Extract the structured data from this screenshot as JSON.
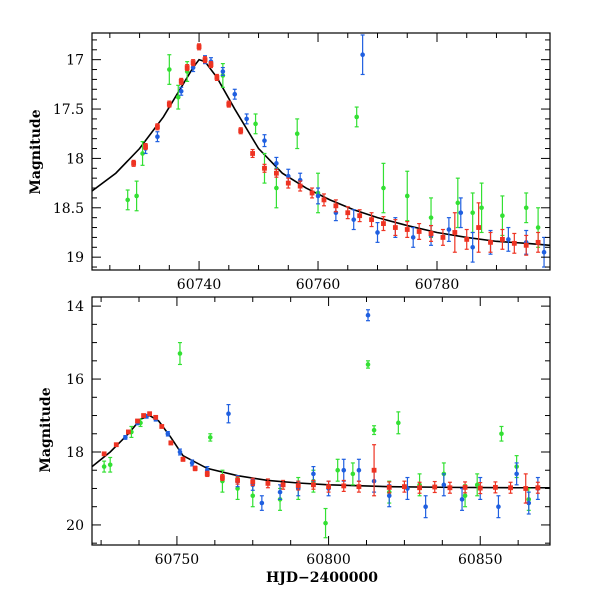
{
  "chart_data": [
    {
      "type": "scatter",
      "xlabel": "",
      "ylabel": "Magnitude",
      "xlim": [
        60722,
        60799
      ],
      "ylim": [
        19.13,
        16.73
      ],
      "y_inverted": true,
      "x_ticks": [
        60740,
        60760,
        60780
      ],
      "y_ticks": [
        17,
        17.5,
        18,
        18.5,
        19
      ],
      "y_tick_labels": [
        "17",
        "17.5",
        "18",
        "18.5",
        "19"
      ],
      "series_colors": {
        "green": "#33e033",
        "blue": "#1f5fe0",
        "red": "#ee3322",
        "model": "#000000"
      },
      "model_curve": {
        "x": [
          60722,
          60726,
          60730,
          60734,
          60737,
          60739,
          60740,
          60741,
          60743,
          60746,
          60750,
          60754,
          60758,
          60762,
          60766,
          60770,
          60775,
          60780,
          60785,
          60790,
          60795,
          60799
        ],
        "y": [
          18.33,
          18.15,
          17.9,
          17.58,
          17.28,
          17.08,
          17.0,
          17.02,
          17.18,
          17.5,
          17.9,
          18.15,
          18.3,
          18.42,
          18.52,
          18.6,
          18.68,
          18.75,
          18.8,
          18.84,
          18.86,
          18.88
        ]
      },
      "series": [
        {
          "color": "green",
          "x": [
            60728,
            60729.5,
            60730.5,
            60735,
            60736.5,
            60738,
            60744,
            60749.5,
            60751,
            60753,
            60756.5,
            60760,
            60766.5,
            60771,
            60775,
            60779,
            60783.5,
            60786,
            60787.5,
            60791,
            60795,
            60797
          ],
          "y": [
            18.42,
            18.38,
            17.95,
            17.1,
            17.38,
            17.12,
            17.16,
            17.65,
            18.1,
            18.3,
            17.75,
            18.35,
            17.58,
            18.3,
            18.38,
            18.6,
            18.45,
            18.55,
            18.5,
            18.58,
            18.5,
            18.7
          ],
          "err": [
            0.1,
            0.15,
            0.12,
            0.15,
            0.12,
            0.1,
            0.12,
            0.1,
            0.15,
            0.2,
            0.15,
            0.2,
            0.1,
            0.25,
            0.25,
            0.2,
            0.25,
            0.2,
            0.25,
            0.2,
            0.15,
            0.2
          ]
        },
        {
          "color": "blue",
          "x": [
            60731,
            60733,
            60737,
            60739,
            60741,
            60742,
            60744,
            60746,
            60748,
            60751,
            60753,
            60755,
            60757,
            60760,
            60763,
            60766,
            60767.5,
            60770,
            60773,
            60776,
            60779,
            60782,
            60784,
            60786,
            60789,
            60792,
            60795,
            60798
          ],
          "y": [
            17.9,
            17.78,
            17.32,
            17.08,
            17.0,
            17.02,
            17.12,
            17.35,
            17.6,
            17.82,
            18.05,
            18.18,
            18.22,
            18.38,
            18.55,
            18.62,
            16.95,
            18.75,
            18.7,
            18.8,
            18.78,
            18.72,
            18.55,
            18.9,
            18.85,
            18.82,
            18.85,
            18.95
          ],
          "err": [
            0.05,
            0.05,
            0.04,
            0.04,
            0.04,
            0.04,
            0.04,
            0.05,
            0.05,
            0.06,
            0.06,
            0.07,
            0.07,
            0.08,
            0.08,
            0.1,
            0.2,
            0.1,
            0.1,
            0.1,
            0.1,
            0.12,
            0.15,
            0.15,
            0.12,
            0.12,
            0.12,
            0.15
          ]
        },
        {
          "color": "red",
          "x": [
            60729,
            60731,
            60733,
            60735,
            60737,
            60738,
            60739,
            60740,
            60741,
            60742,
            60743,
            60745,
            60747,
            60749,
            60751,
            60753,
            60755,
            60757,
            60759,
            60761,
            60763,
            60765,
            60767,
            60769,
            60771,
            60773,
            60775,
            60777,
            60779,
            60781,
            60783,
            60785,
            60787,
            60789,
            60791,
            60793,
            60795,
            60797
          ],
          "y": [
            18.05,
            17.88,
            17.68,
            17.45,
            17.22,
            17.08,
            17.03,
            16.87,
            17.0,
            17.05,
            17.18,
            17.45,
            17.72,
            17.95,
            18.1,
            18.15,
            18.25,
            18.28,
            18.35,
            18.42,
            18.48,
            18.55,
            18.58,
            18.62,
            18.66,
            18.7,
            18.72,
            18.74,
            18.76,
            18.8,
            18.75,
            18.82,
            18.7,
            18.85,
            18.82,
            18.86,
            18.88,
            18.85
          ],
          "err": [
            0.03,
            0.03,
            0.03,
            0.03,
            0.03,
            0.03,
            0.03,
            0.03,
            0.03,
            0.03,
            0.03,
            0.03,
            0.03,
            0.04,
            0.04,
            0.04,
            0.05,
            0.05,
            0.05,
            0.06,
            0.06,
            0.06,
            0.06,
            0.07,
            0.07,
            0.08,
            0.08,
            0.08,
            0.08,
            0.08,
            0.2,
            0.1,
            0.25,
            0.1,
            0.1,
            0.1,
            0.1,
            0.1
          ]
        }
      ]
    },
    {
      "type": "scatter",
      "xlabel": "HJD−2400000",
      "ylabel": "Magnitude",
      "xlim": [
        60722,
        60873
      ],
      "ylim": [
        20.55,
        13.75
      ],
      "y_inverted": true,
      "x_ticks": [
        60750,
        60800,
        60850
      ],
      "y_ticks": [
        14,
        16,
        18,
        20
      ],
      "y_tick_labels": [
        "14",
        "16",
        "18",
        "20"
      ],
      "series_colors": {
        "green": "#33e033",
        "blue": "#1f5fe0",
        "red": "#ee3322",
        "model": "#000000"
      },
      "model_curve": {
        "x": [
          60722,
          60728,
          60734,
          60738,
          60741,
          60744,
          60748,
          60752,
          60760,
          60770,
          60780,
          60790,
          60800,
          60820,
          60840,
          60860,
          60873
        ],
        "y": [
          18.4,
          18.0,
          17.5,
          17.1,
          17.0,
          17.15,
          17.6,
          18.1,
          18.45,
          18.65,
          18.78,
          18.85,
          18.9,
          18.95,
          18.97,
          18.98,
          18.98
        ]
      },
      "series": [
        {
          "color": "green",
          "x": [
            60726,
            60728,
            60735,
            60738,
            60751,
            60761,
            60765,
            60770,
            60775,
            60784,
            60790,
            60795,
            60799,
            60803,
            60808,
            60813,
            60815,
            60820,
            60823,
            60830,
            60838,
            60845,
            60849,
            60857,
            60862,
            60866
          ],
          "y": [
            18.4,
            18.35,
            17.45,
            17.2,
            15.3,
            17.6,
            18.8,
            19.0,
            19.2,
            19.3,
            19.0,
            18.8,
            19.95,
            18.5,
            18.6,
            15.6,
            17.4,
            19.1,
            17.2,
            18.9,
            18.6,
            19.2,
            18.9,
            17.5,
            18.4,
            19.3
          ],
          "err": [
            0.15,
            0.2,
            0.15,
            0.1,
            0.3,
            0.1,
            0.3,
            0.3,
            0.3,
            0.3,
            0.3,
            0.3,
            0.4,
            0.3,
            0.3,
            0.1,
            0.12,
            0.3,
            0.3,
            0.3,
            0.3,
            0.3,
            0.3,
            0.2,
            0.3,
            0.3
          ]
        },
        {
          "color": "blue",
          "x": [
            60733,
            60737,
            60740,
            60743,
            60747,
            60751,
            60755,
            60760,
            60767,
            60770,
            60775,
            60778,
            60784,
            60790,
            60795,
            60800,
            60805,
            60810,
            60813,
            60815,
            60820,
            60826,
            60832,
            60838,
            60844,
            60850,
            60856,
            60862,
            60866,
            60869
          ],
          "y": [
            17.6,
            17.2,
            17.02,
            17.1,
            17.5,
            18.0,
            18.3,
            18.5,
            16.95,
            18.8,
            18.9,
            19.4,
            19.1,
            19.0,
            18.6,
            19.0,
            18.5,
            18.5,
            14.25,
            18.8,
            19.2,
            19.0,
            19.5,
            18.9,
            19.3,
            19.0,
            19.5,
            18.6,
            19.4,
            19.0
          ],
          "err": [
            0.05,
            0.05,
            0.05,
            0.05,
            0.06,
            0.08,
            0.08,
            0.1,
            0.25,
            0.15,
            0.15,
            0.2,
            0.2,
            0.2,
            0.2,
            0.2,
            0.3,
            0.3,
            0.15,
            0.3,
            0.3,
            0.3,
            0.3,
            0.3,
            0.3,
            0.3,
            0.3,
            0.3,
            0.3,
            0.3
          ]
        },
        {
          "color": "red",
          "x": [
            60726,
            60730,
            60734,
            60737,
            60739,
            60741,
            60743,
            60745,
            60748,
            60752,
            60756,
            60760,
            60765,
            60770,
            60775,
            60780,
            60785,
            60790,
            60795,
            60800,
            60805,
            60810,
            60815,
            60820,
            60825,
            60830,
            60835,
            60840,
            60845,
            60850,
            60855,
            60860,
            60865,
            60869
          ],
          "y": [
            18.05,
            17.8,
            17.45,
            17.15,
            17.0,
            16.95,
            17.05,
            17.3,
            17.75,
            18.2,
            18.45,
            18.6,
            18.7,
            18.78,
            18.82,
            18.86,
            18.9,
            18.92,
            18.9,
            18.95,
            18.93,
            18.95,
            18.5,
            18.97,
            18.95,
            18.98,
            18.96,
            18.98,
            18.97,
            18.99,
            18.97,
            18.98,
            19.0,
            18.98
          ],
          "err": [
            0.04,
            0.04,
            0.04,
            0.04,
            0.04,
            0.04,
            0.04,
            0.04,
            0.05,
            0.05,
            0.06,
            0.07,
            0.08,
            0.1,
            0.1,
            0.12,
            0.12,
            0.12,
            0.12,
            0.15,
            0.15,
            0.15,
            0.7,
            0.15,
            0.15,
            0.15,
            0.15,
            0.15,
            0.15,
            0.15,
            0.15,
            0.15,
            0.4,
            0.15
          ]
        }
      ]
    }
  ]
}
